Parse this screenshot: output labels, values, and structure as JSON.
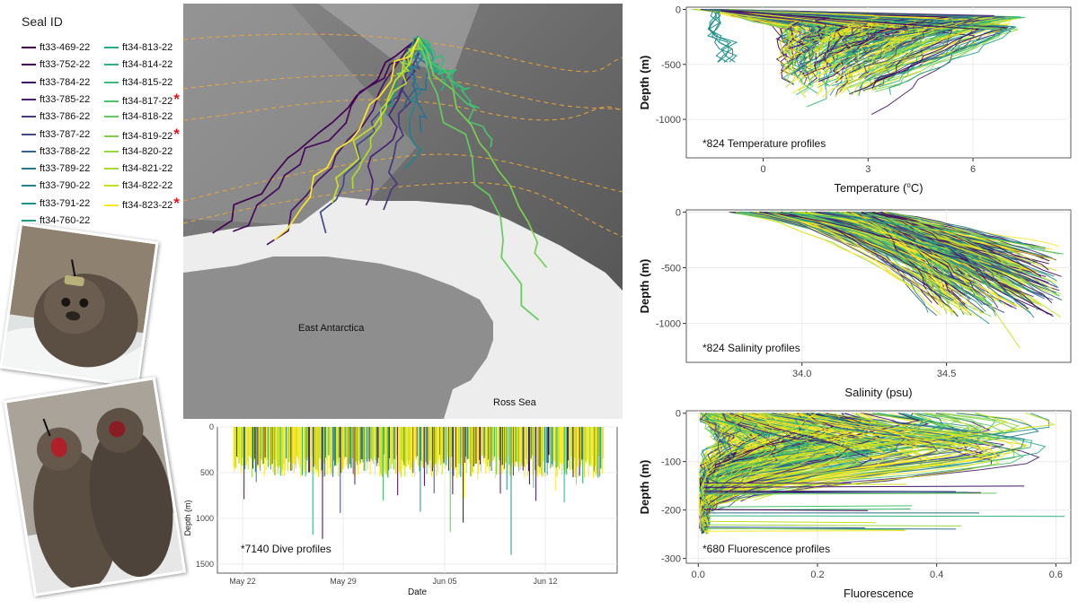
{
  "legend": {
    "title": "Seal ID",
    "items": [
      {
        "id": "ft33-469-22",
        "color": "#440154",
        "star": false
      },
      {
        "id": "ft33-752-22",
        "color": "#46085c",
        "star": false
      },
      {
        "id": "ft33-784-22",
        "color": "#471365",
        "star": false
      },
      {
        "id": "ft33-785-22",
        "color": "#482173",
        "star": false
      },
      {
        "id": "ft33-786-22",
        "color": "#453781",
        "star": false
      },
      {
        "id": "ft33-787-22",
        "color": "#3e4989",
        "star": false
      },
      {
        "id": "ft33-788-22",
        "color": "#355f8d",
        "star": false
      },
      {
        "id": "ft33-789-22",
        "color": "#2c728e",
        "star": false
      },
      {
        "id": "ft33-790-22",
        "color": "#26828e",
        "star": false
      },
      {
        "id": "ft33-791-22",
        "color": "#21918c",
        "star": false
      },
      {
        "id": "ft34-760-22",
        "color": "#1fa088",
        "star": false
      },
      {
        "id": "ft34-813-22",
        "color": "#26ad81",
        "star": false
      },
      {
        "id": "ft34-814-22",
        "color": "#2db27d",
        "star": false
      },
      {
        "id": "ft34-815-22",
        "color": "#3bbb75",
        "star": false
      },
      {
        "id": "ft34-817-22",
        "color": "#4ac16d",
        "star": true
      },
      {
        "id": "ft34-818-22",
        "color": "#65cb5e",
        "star": false
      },
      {
        "id": "ft34-819-22",
        "color": "#7ad151",
        "star": true
      },
      {
        "id": "ft34-820-22",
        "color": "#95d840",
        "star": false
      },
      {
        "id": "ft34-821-22",
        "color": "#addc30",
        "star": false
      },
      {
        "id": "ft34-822-22",
        "color": "#c8e020",
        "star": false
      },
      {
        "id": "ft34-823-22",
        "color": "#fde725",
        "star": true
      }
    ]
  },
  "map": {
    "labels": [
      "East Antarctica",
      "Ross Sea"
    ]
  },
  "chart_data": [
    {
      "type": "line",
      "panel": "temperature",
      "annotation": "*824 Temperature profiles",
      "xlabel_main": "Temperature (",
      "xlabel_sup": "o",
      "xlabel_end": "C)",
      "ylabel": "Depth (m)",
      "xlim": [
        -2.2,
        8.8
      ],
      "ylim": [
        -1350,
        20
      ],
      "xticks": [
        0,
        3,
        6
      ],
      "yticks": [
        0,
        -500,
        -1000
      ],
      "grid": true,
      "profiles": 824,
      "color_scale": "viridis"
    },
    {
      "type": "line",
      "panel": "salinity",
      "annotation": "*824 Salinity profiles",
      "xlabel": "Salinity (psu)",
      "ylabel": "Depth (m)",
      "xlim": [
        33.6,
        34.93
      ],
      "ylim": [
        -1350,
        20
      ],
      "xticks": [
        34.0,
        34.5
      ],
      "yticks": [
        0,
        -500,
        -1000
      ],
      "grid": true,
      "profiles": 824,
      "color_scale": "viridis"
    },
    {
      "type": "line",
      "panel": "fluorescence",
      "annotation": "*680 Fluorescence profiles",
      "xlabel": "Fluorescence",
      "ylabel": "Depth (m)",
      "xlim": [
        -0.02,
        0.625
      ],
      "ylim": [
        -310,
        5
      ],
      "xticks": [
        0.0,
        0.2,
        0.4,
        0.6
      ],
      "yticks": [
        0,
        -100,
        -200,
        -300
      ],
      "grid": true,
      "profiles": 680,
      "color_scale": "viridis"
    },
    {
      "type": "bar",
      "panel": "dives",
      "annotation": "*7140 Dive profiles",
      "xlabel": "Date",
      "ylabel": "Depth (m)",
      "xticks": [
        "May 22",
        "May 29",
        "Jun 05",
        "Jun 12"
      ],
      "yticks": [
        0,
        500,
        1000,
        1500
      ],
      "ylim": [
        0,
        1600
      ],
      "grid": true,
      "profiles": 7140,
      "color_scale": "viridis"
    }
  ]
}
